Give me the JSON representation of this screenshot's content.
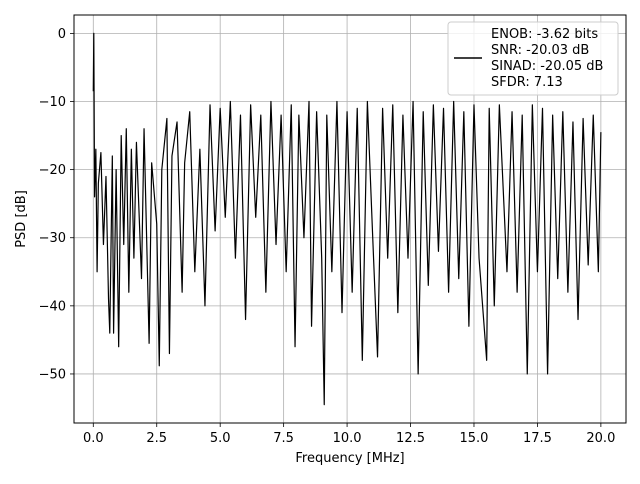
{
  "chart_data": {
    "type": "line",
    "title": "",
    "xlabel": "Frequency [MHz]",
    "ylabel": "PSD [dB]",
    "xlim": [
      -0.76,
      20.99
    ],
    "ylim": [
      -57.2,
      2.7
    ],
    "x_ticks": [
      0.0,
      2.5,
      5.0,
      7.5,
      10.0,
      12.5,
      15.0,
      17.5,
      20.0
    ],
    "x_tick_labels": [
      "0.0",
      "2.5",
      "5.0",
      "7.5",
      "10.0",
      "12.5",
      "15.0",
      "17.5",
      "20.0"
    ],
    "y_ticks": [
      0,
      -10,
      -20,
      -30,
      -40,
      -50
    ],
    "y_tick_labels": [
      "0",
      "−10",
      "−20",
      "−30",
      "−40",
      "−50"
    ],
    "grid": true,
    "legend_position": "top-right",
    "x_range": [
      0.0,
      20.0
    ],
    "series": [
      {
        "color": "#000000",
        "legend_lines": [
          "ENOB: -3.62 bits",
          "SNR: -20.03 dB",
          "SINAD: -20.05 dB",
          "SFDR: 7.13"
        ],
        "points": [
          [
            0.0,
            -8.5
          ],
          [
            0.02,
            0.0
          ],
          [
            0.05,
            -24.0
          ],
          [
            0.1,
            -17.0
          ],
          [
            0.15,
            -35.0
          ],
          [
            0.2,
            -22.0
          ],
          [
            0.3,
            -17.5
          ],
          [
            0.4,
            -31.0
          ],
          [
            0.5,
            -21.0
          ],
          [
            0.6,
            -39.0
          ],
          [
            0.65,
            -44.0
          ],
          [
            0.75,
            -18.0
          ],
          [
            0.8,
            -44.0
          ],
          [
            0.9,
            -20.0
          ],
          [
            1.0,
            -46.0
          ],
          [
            1.1,
            -15.0
          ],
          [
            1.2,
            -31.0
          ],
          [
            1.3,
            -14.0
          ],
          [
            1.4,
            -38.0
          ],
          [
            1.5,
            -17.0
          ],
          [
            1.6,
            -33.0
          ],
          [
            1.7,
            -16.0
          ],
          [
            1.9,
            -36.0
          ],
          [
            2.0,
            -14.0
          ],
          [
            2.2,
            -45.5
          ],
          [
            2.3,
            -19.0
          ],
          [
            2.5,
            -28.0
          ],
          [
            2.6,
            -48.8
          ],
          [
            2.7,
            -20.0
          ],
          [
            2.9,
            -12.5
          ],
          [
            3.0,
            -47.0
          ],
          [
            3.1,
            -18.0
          ],
          [
            3.3,
            -13.0
          ],
          [
            3.5,
            -38.0
          ],
          [
            3.6,
            -19.0
          ],
          [
            3.8,
            -11.5
          ],
          [
            4.0,
            -35.0
          ],
          [
            4.2,
            -17.0
          ],
          [
            4.4,
            -40.0
          ],
          [
            4.6,
            -10.5
          ],
          [
            4.8,
            -29.0
          ],
          [
            5.0,
            -11.0
          ],
          [
            5.2,
            -27.0
          ],
          [
            5.4,
            -10.0
          ],
          [
            5.6,
            -33.0
          ],
          [
            5.8,
            -12.0
          ],
          [
            6.0,
            -42.0
          ],
          [
            6.2,
            -10.5
          ],
          [
            6.4,
            -27.0
          ],
          [
            6.6,
            -12.0
          ],
          [
            6.8,
            -38.0
          ],
          [
            7.0,
            -10.0
          ],
          [
            7.2,
            -31.0
          ],
          [
            7.4,
            -12.0
          ],
          [
            7.6,
            -35.0
          ],
          [
            7.8,
            -10.5
          ],
          [
            7.95,
            -46.0
          ],
          [
            8.1,
            -12.0
          ],
          [
            8.3,
            -30.0
          ],
          [
            8.5,
            -10.0
          ],
          [
            8.6,
            -43.0
          ],
          [
            8.8,
            -11.5
          ],
          [
            9.0,
            -33.0
          ],
          [
            9.1,
            -54.5
          ],
          [
            9.2,
            -12.0
          ],
          [
            9.4,
            -35.0
          ],
          [
            9.6,
            -10.0
          ],
          [
            9.8,
            -41.0
          ],
          [
            10.0,
            -11.5
          ],
          [
            10.2,
            -38.0
          ],
          [
            10.4,
            -11.0
          ],
          [
            10.6,
            -48.0
          ],
          [
            10.8,
            -10.0
          ],
          [
            11.0,
            -29.0
          ],
          [
            11.2,
            -47.5
          ],
          [
            11.4,
            -11.0
          ],
          [
            11.6,
            -33.0
          ],
          [
            11.8,
            -10.5
          ],
          [
            12.0,
            -41.0
          ],
          [
            12.2,
            -12.0
          ],
          [
            12.4,
            -33.0
          ],
          [
            12.6,
            -10.0
          ],
          [
            12.8,
            -50.0
          ],
          [
            13.0,
            -11.5
          ],
          [
            13.2,
            -37.0
          ],
          [
            13.4,
            -10.5
          ],
          [
            13.6,
            -32.0
          ],
          [
            13.8,
            -11.0
          ],
          [
            14.0,
            -38.0
          ],
          [
            14.2,
            -10.0
          ],
          [
            14.4,
            -36.0
          ],
          [
            14.6,
            -11.5
          ],
          [
            14.8,
            -43.0
          ],
          [
            15.0,
            -10.5
          ],
          [
            15.2,
            -33.0
          ],
          [
            15.5,
            -48.0
          ],
          [
            15.6,
            -11.0
          ],
          [
            15.8,
            -40.0
          ],
          [
            16.0,
            -10.5
          ],
          [
            16.3,
            -35.0
          ],
          [
            16.5,
            -11.5
          ],
          [
            16.7,
            -38.0
          ],
          [
            16.9,
            -12.0
          ],
          [
            17.1,
            -50.0
          ],
          [
            17.3,
            -10.5
          ],
          [
            17.5,
            -35.0
          ],
          [
            17.7,
            -11.0
          ],
          [
            17.9,
            -50.0
          ],
          [
            18.1,
            -12.0
          ],
          [
            18.3,
            -36.0
          ],
          [
            18.5,
            -11.5
          ],
          [
            18.7,
            -38.0
          ],
          [
            18.9,
            -13.0
          ],
          [
            19.1,
            -42.0
          ],
          [
            19.3,
            -12.5
          ],
          [
            19.5,
            -34.0
          ],
          [
            19.7,
            -12.0
          ],
          [
            19.9,
            -35.0
          ],
          [
            20.0,
            -14.5
          ]
        ]
      }
    ]
  }
}
